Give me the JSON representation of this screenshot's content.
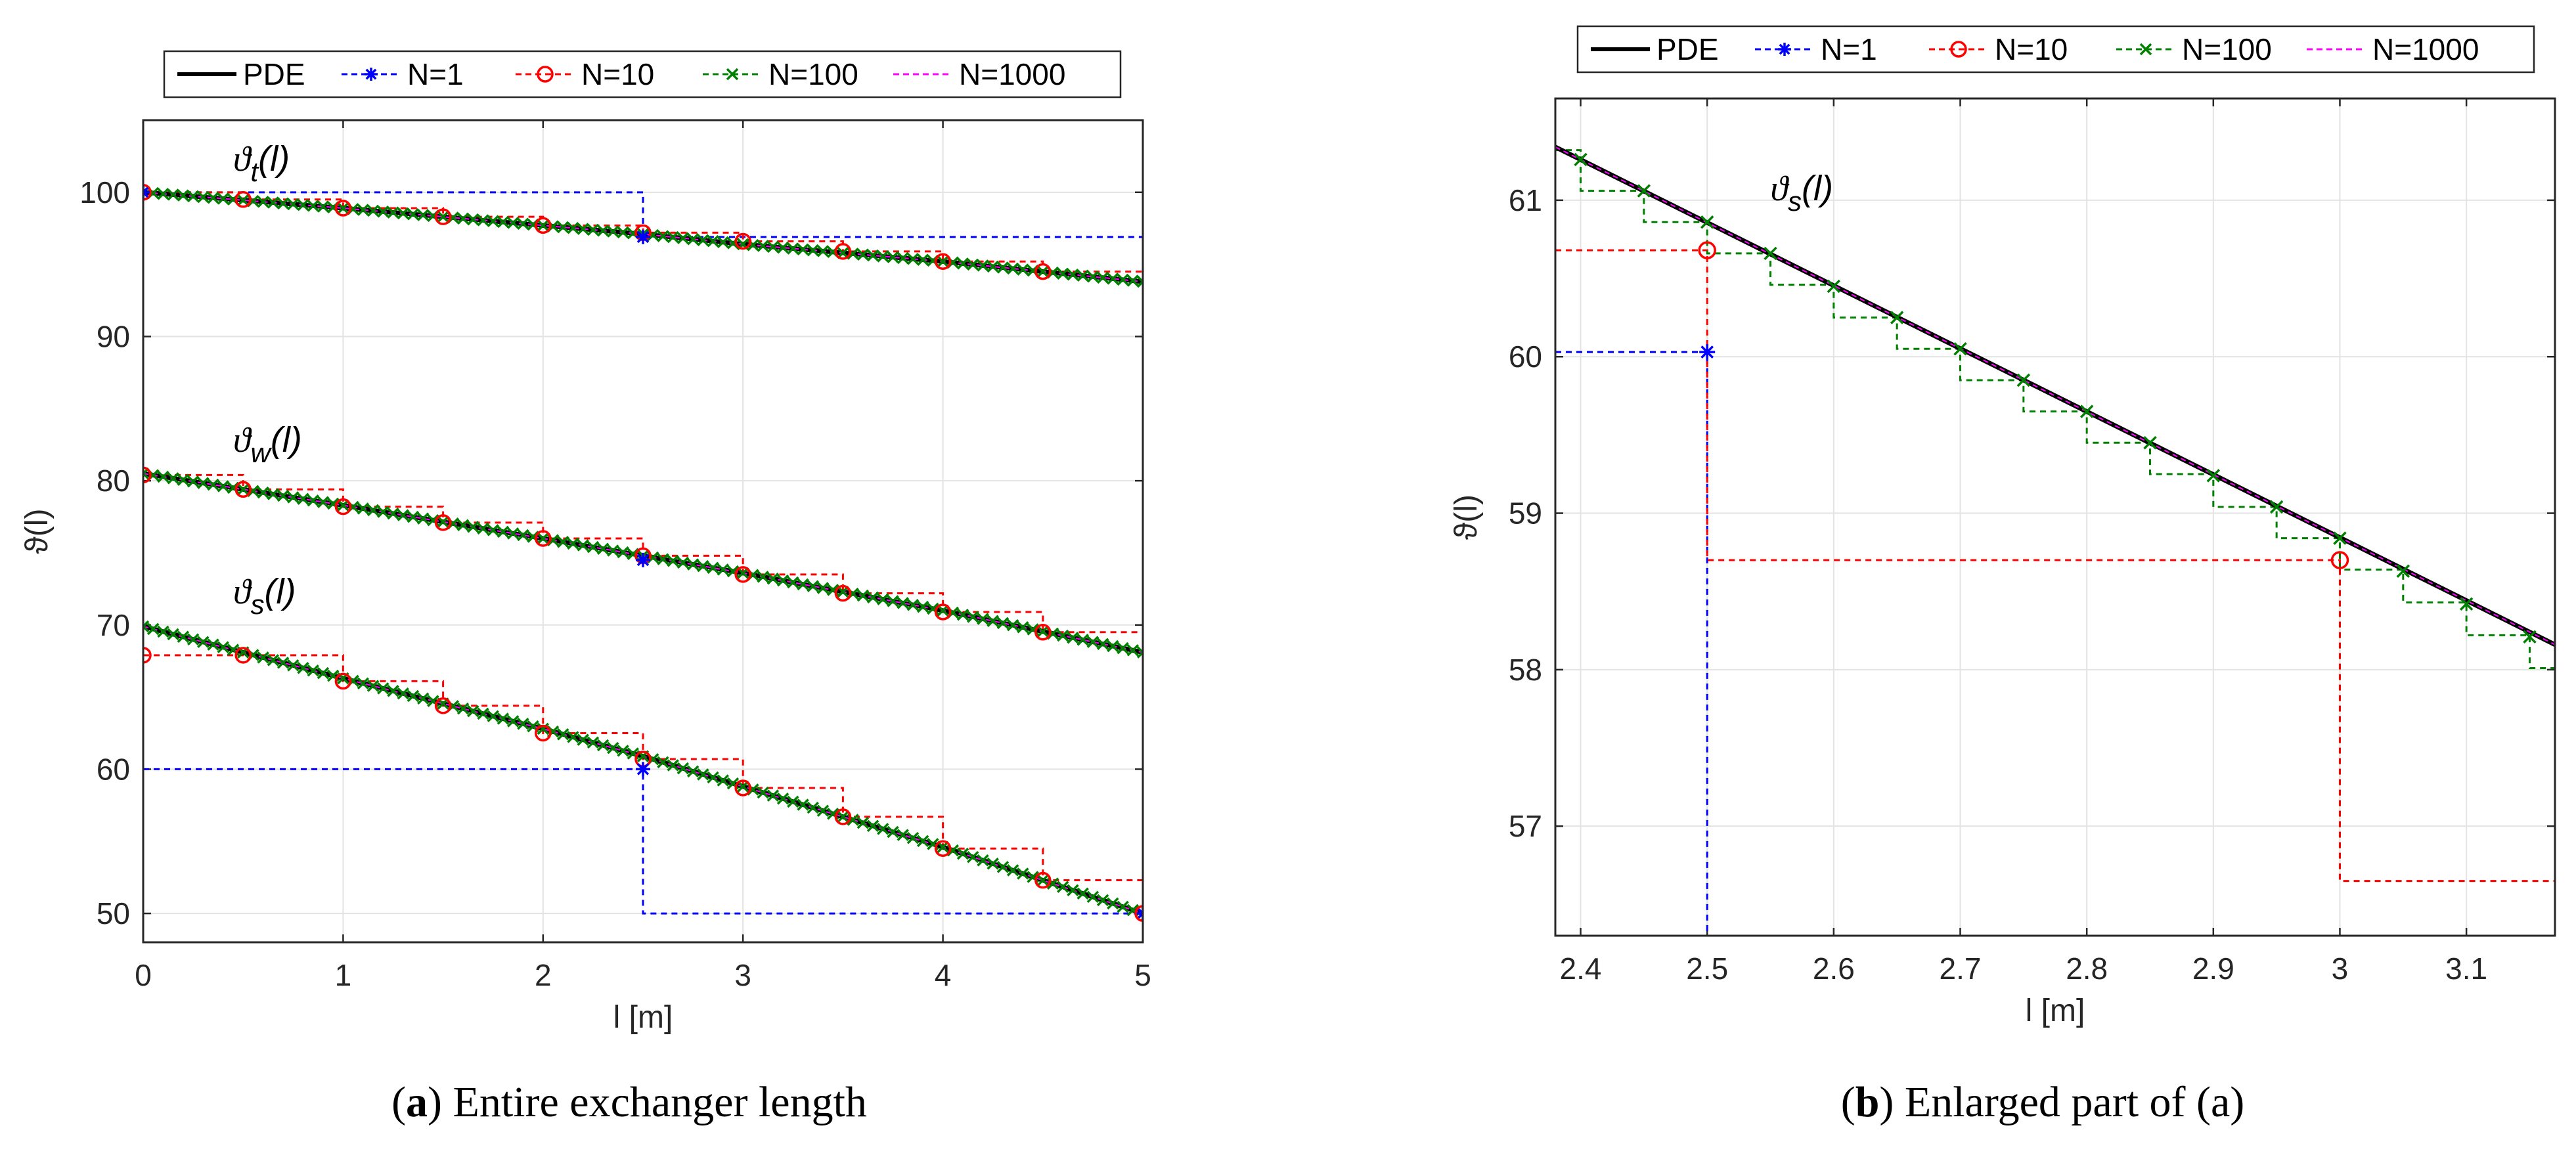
{
  "colors": {
    "pde": "#000000",
    "n1": "#0000ff",
    "n10": "#ff0000",
    "n100": "#008000",
    "n1000": "#ff00ff",
    "grid": "#e3e3e3",
    "axis": "#262626"
  },
  "legend": {
    "items": [
      {
        "key": "pde",
        "label": "PDE"
      },
      {
        "key": "n1",
        "label": "N=1"
      },
      {
        "key": "n10",
        "label": "N=10"
      },
      {
        "key": "n100",
        "label": "N=100"
      },
      {
        "key": "n1000",
        "label": "N=1000"
      }
    ]
  },
  "captions": {
    "a_letter": "a",
    "a_text": " Entire exchanger length",
    "b_letter": "b",
    "b_text": " Enlarged part of (a)"
  },
  "chart_data": [
    {
      "type": "line",
      "panel": "a",
      "xlabel": "l [m]",
      "ylabel": "ϑ(l)",
      "xlim": [
        0,
        5
      ],
      "ylim": [
        48,
        105
      ],
      "xticks": [
        0,
        1,
        2,
        3,
        4,
        5
      ],
      "yticks": [
        50,
        60,
        70,
        80,
        90,
        100
      ],
      "grid": true,
      "annotations": [
        {
          "base": "ϑ",
          "sub": "t",
          "arg": "(l)",
          "x": 0.45,
          "y": 101.5
        },
        {
          "base": "ϑ",
          "sub": "w",
          "arg": "(l)",
          "x": 0.45,
          "y": 82.0
        },
        {
          "base": "ϑ",
          "sub": "s",
          "arg": "(l)",
          "x": 0.45,
          "y": 71.5
        }
      ],
      "curves": [
        {
          "name": "t",
          "pde": {
            "x": [
              0,
              1,
              2,
              2.5,
              3,
              4,
              5
            ],
            "y": [
              100.0,
              98.9,
              97.7,
              97.1,
              96.4,
              95.2,
              93.8
            ]
          },
          "n1": {
            "x": [
              0,
              2.5,
              5
            ],
            "y": [
              100.0,
              96.9,
              96.9
            ]
          },
          "n10": {
            "x": [
              0,
              0.5,
              1,
              1.5,
              2,
              2.5,
              3,
              3.5,
              4,
              4.5
            ],
            "y": [
              100.0,
              99.5,
              98.9,
              98.3,
              97.7,
              97.2,
              96.6,
              95.9,
              95.2,
              94.5
            ]
          }
        },
        {
          "name": "w",
          "pde": {
            "x": [
              0,
              1,
              2,
              2.5,
              3,
              4,
              5
            ],
            "y": [
              80.5,
              78.3,
              76.0,
              74.8,
              73.6,
              71.0,
              68.1
            ]
          },
          "n1": {
            "x": [
              2.5
            ],
            "y": [
              74.5
            ]
          },
          "n10": {
            "x": [
              0,
              0.5,
              1,
              1.5,
              2,
              2.5,
              3,
              3.5,
              4,
              4.5
            ],
            "y": [
              80.4,
              79.4,
              78.2,
              77.1,
              76.0,
              74.8,
              73.5,
              72.2,
              70.9,
              69.5
            ]
          }
        },
        {
          "name": "s",
          "pde": {
            "x": [
              0,
              1,
              2,
              2.5,
              3,
              4,
              5
            ],
            "y": [
              69.9,
              66.3,
              62.8,
              60.9,
              58.8,
              54.6,
              50.0
            ]
          },
          "n1": {
            "x": [
              0,
              2.5,
              5
            ],
            "y": [
              60.0,
              60.0,
              50.0
            ]
          },
          "n10": {
            "x": [
              0,
              0.5,
              1,
              1.5,
              2,
              2.5,
              3,
              3.5,
              4,
              4.5,
              5
            ],
            "y": [
              67.9,
              67.9,
              66.1,
              64.4,
              62.5,
              60.7,
              58.7,
              56.7,
              54.5,
              52.3,
              50.0
            ]
          }
        }
      ]
    },
    {
      "type": "line",
      "panel": "b",
      "xlabel": "l [m]",
      "ylabel": "ϑ(l)",
      "xlim": [
        2.38,
        3.17
      ],
      "ylim": [
        56.3,
        61.65
      ],
      "xticks": [
        2.4,
        2.5,
        2.6,
        2.7,
        2.8,
        2.9,
        3,
        3.1
      ],
      "yticks": [
        57,
        58,
        59,
        60,
        61
      ],
      "grid": true,
      "annotations": [
        {
          "base": "ϑ",
          "sub": "s",
          "arg": "(l)",
          "x": 2.55,
          "y": 61.0
        }
      ],
      "pde": {
        "x": [
          2.38,
          3.17
        ],
        "y": [
          61.34,
          58.16
        ]
      },
      "n1": {
        "x": [
          2.5
        ],
        "y": [
          60.03
        ],
        "step_from": 2.38,
        "drop_to": 56.3
      },
      "n10": {
        "x": [
          2.5,
          3.0
        ],
        "y": [
          60.68,
          58.7
        ],
        "step_from": 2.38,
        "final_level": 56.65
      },
      "n100": {
        "x": [
          2.4,
          2.45,
          2.5,
          2.55,
          2.6,
          2.65,
          2.7,
          2.75,
          2.8,
          2.85,
          2.9,
          2.95,
          3.0,
          3.05,
          3.1,
          3.15
        ],
        "y": [
          61.26,
          61.06,
          60.86,
          60.66,
          60.45,
          60.25,
          60.05,
          59.85,
          59.65,
          59.45,
          59.24,
          59.04,
          58.84,
          58.63,
          58.42,
          58.21
        ]
      }
    }
  ]
}
